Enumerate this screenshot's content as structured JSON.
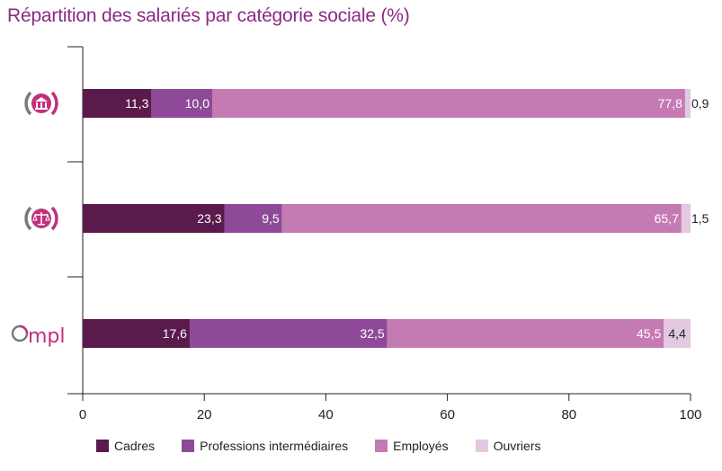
{
  "title": "Répartition des salariés par catégorie sociale (%)",
  "logos": [
    {
      "icon": "institution-building-icon"
    },
    {
      "icon": "justice-scales-icon"
    },
    {
      "icon": "ompl-logo",
      "text": "Ompl"
    }
  ],
  "colors": {
    "title": "#8a2b83",
    "axis": "#222222",
    "logo_pink": "#c0307f",
    "logo_grey": "#7a7a7a"
  },
  "chart_data": {
    "type": "bar",
    "orientation": "horizontal",
    "stacked": true,
    "title": "Répartition des salariés par catégorie sociale (%)",
    "xlim": [
      0,
      100
    ],
    "xticks": [
      "0",
      "20",
      "40",
      "60",
      "80",
      "100"
    ],
    "categories": [
      "institution",
      "justice",
      "Ompl"
    ],
    "series": [
      {
        "name": "Cadres",
        "color": "#5a1a4c",
        "values": [
          11.3,
          23.3,
          17.6
        ],
        "labels": [
          "11,3",
          "23,3",
          "17,6"
        ]
      },
      {
        "name": "Professions intermédiaires",
        "color": "#8e4a98",
        "values": [
          10.0,
          9.5,
          32.5
        ],
        "labels": [
          "10,0",
          "9,5",
          "32,5"
        ]
      },
      {
        "name": "Employés",
        "color": "#c47ab2",
        "values": [
          77.8,
          65.7,
          45.5
        ],
        "labels": [
          "77,8",
          "65,7",
          "45,5"
        ]
      },
      {
        "name": "Ouvriers",
        "color": "#e2c9df",
        "values": [
          0.9,
          1.5,
          4.4
        ],
        "labels": [
          "0,9",
          "1,5",
          "4,4"
        ]
      }
    ],
    "legend_position": "bottom",
    "grid": false
  }
}
